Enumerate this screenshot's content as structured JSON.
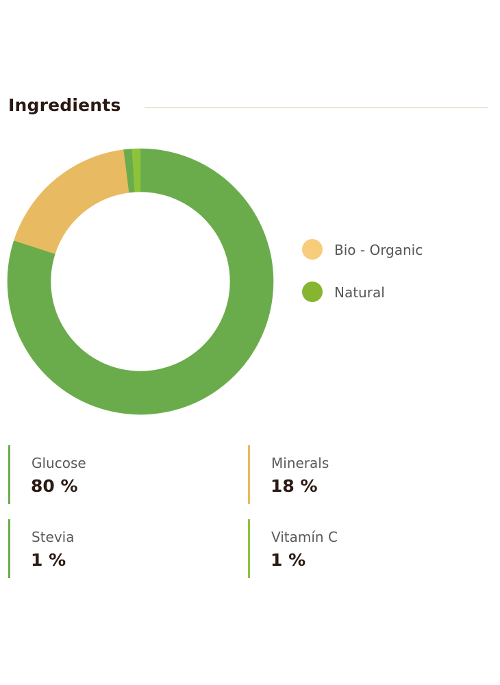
{
  "section": {
    "title": "Ingredients"
  },
  "colors": {
    "glucose": "#6aac4b",
    "minerals": "#e8bb62",
    "stevia": "#6aac4b",
    "vitamin_c": "#8dc33b",
    "legend_bio": "#f7cc7b",
    "legend_natural": "#86b532",
    "title": "#2b1a12",
    "rule": "#eee3d6"
  },
  "legend": {
    "items": [
      {
        "label": "Bio - Organic",
        "color": "#f7cc7b"
      },
      {
        "label": "Natural",
        "color": "#86b532"
      }
    ]
  },
  "chart_data": {
    "type": "pie",
    "donut": true,
    "start": "top",
    "direction": "clockwise",
    "slices": [
      {
        "label": "Glucose",
        "value": 80,
        "color": "#6aac4b"
      },
      {
        "label": "Minerals",
        "value": 18,
        "color": "#e8bb62"
      },
      {
        "label": "Stevia",
        "value": 1,
        "color": "#6aac4b"
      },
      {
        "label": "Vitamín C",
        "value": 1,
        "color": "#8dc33b"
      }
    ]
  },
  "stats": {
    "glucose": {
      "name": "Glucose",
      "value": "80 %",
      "bar_color": "#6aac4b"
    },
    "minerals": {
      "name": "Minerals",
      "value": "18 %",
      "bar_color": "#e8bb62"
    },
    "stevia": {
      "name": "Stevia",
      "value": "1 %",
      "bar_color": "#6aac4b"
    },
    "vitamin_c": {
      "name": "Vitamín C",
      "value": "1 %",
      "bar_color": "#8dc33b"
    }
  }
}
